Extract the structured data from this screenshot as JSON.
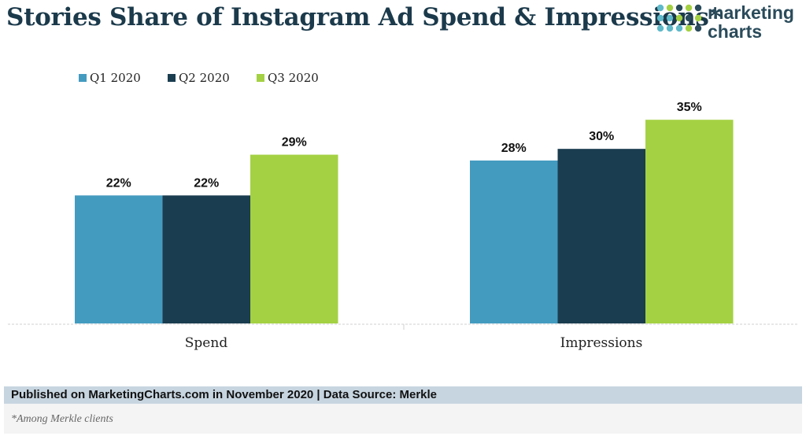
{
  "header": {
    "title": "Stories Share of Instagram Ad Spend & Impressions*",
    "logo_line1": "marketing",
    "logo_line2": "charts"
  },
  "colors": {
    "q1": "#449bc0",
    "q2": "#1b3d50",
    "q3": "#a4d143",
    "logo_dots": [
      "#5fb9c9",
      "#a4d143",
      "#2a4b5b"
    ]
  },
  "chart_data": {
    "type": "bar",
    "categories": [
      "Spend",
      "Impressions"
    ],
    "series": [
      {
        "name": "Q1 2020",
        "values": [
          22,
          28
        ]
      },
      {
        "name": "Q2 2020",
        "values": [
          22,
          30
        ]
      },
      {
        "name": "Q3 2020",
        "values": [
          29,
          35
        ]
      }
    ],
    "value_suffix": "%",
    "title": "Stories Share of Instagram Ad Spend & Impressions*",
    "xlabel": "",
    "ylabel": "",
    "ylim": [
      0,
      38
    ],
    "grid": false,
    "legend": "top-left"
  },
  "footer": {
    "published": "Published on MarketingCharts.com in November 2020 | Data Source: Merkle",
    "note": "*Among Merkle clients"
  }
}
